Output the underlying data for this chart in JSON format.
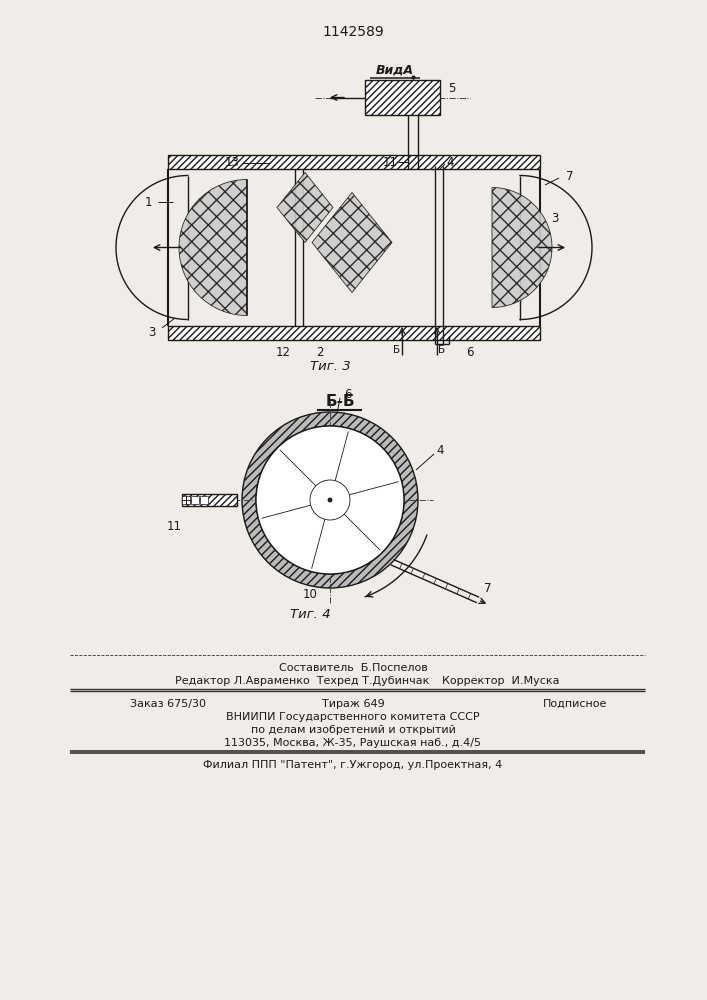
{
  "title": "1142589",
  "bg_color": "#f0ede8",
  "fig3_label": "Τиг. 3",
  "fig4_label": "Τиг. 4",
  "view_label": "ВидА",
  "section_label": "Б-Б",
  "footer_line1": "Составитель  Б.Поспелов",
  "footer_line2_left": "Редактор Л.Авраменко  Техред Т.Дубинчак",
  "footer_line2_right": "Корректор  И.Муска",
  "footer_line3_1": "Заказ 675/30",
  "footer_line3_2": "Тираж 649",
  "footer_line3_3": "Подписное",
  "footer_line4": "ВНИИПИ Государственного комитета СССР",
  "footer_line5": "по делам изобретений и открытий",
  "footer_line6": "113035, Москва, Ж-35, Раушская наб., д.4/5",
  "footer_line7": "Филиал ППП \"Патент\", г.Ужгород, ул.Проектная, 4",
  "text_color": "#1a1a1a",
  "line_color": "#1a1a1a"
}
